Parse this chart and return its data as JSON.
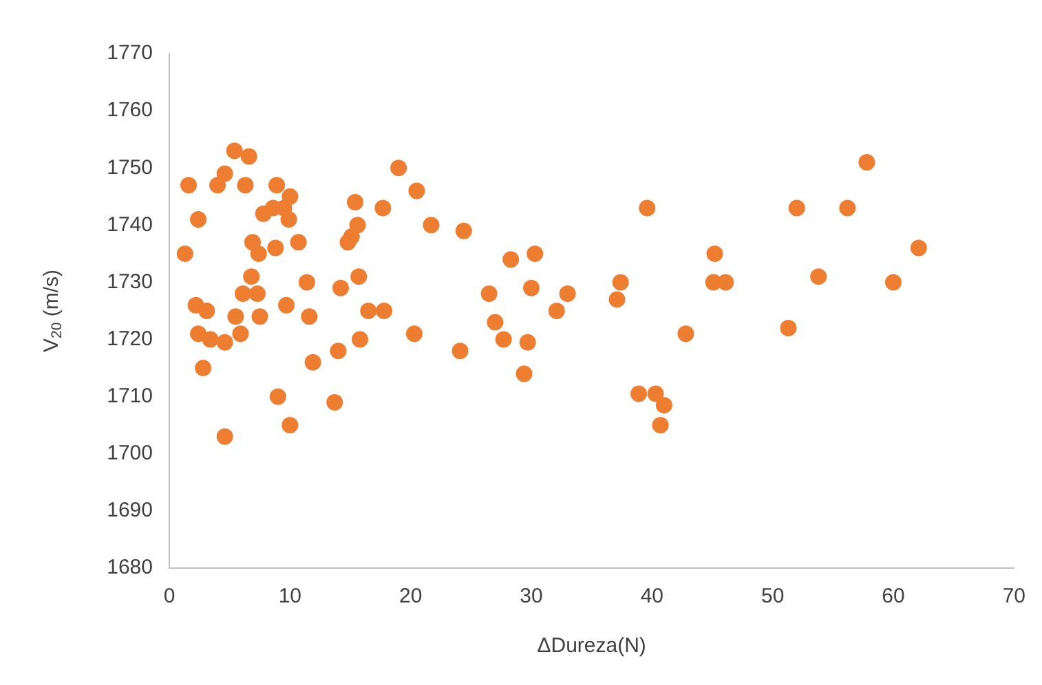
{
  "chart_data": {
    "type": "scatter",
    "xlabel": "ΔDureza(N)",
    "ylabel": "V$_{20}$ (m/s)",
    "xlim": [
      0,
      70
    ],
    "xticks": [
      0,
      10,
      20,
      30,
      40,
      50,
      60,
      70
    ],
    "ylim": [
      1680,
      1770
    ],
    "yticks": [
      1680,
      1690,
      1700,
      1710,
      1720,
      1730,
      1740,
      1750,
      1760,
      1770
    ],
    "grid": false,
    "legend": false,
    "marker": "circle",
    "series": [
      {
        "color": "#ed7d31",
        "x": [
          1.3,
          1.6,
          2.2,
          2.4,
          2.4,
          2.8,
          3.1,
          3.4,
          4.0,
          4.6,
          4.6,
          4.6,
          5.4,
          5.5,
          5.9,
          6.1,
          6.3,
          6.6,
          6.8,
          6.9,
          7.3,
          7.4,
          7.5,
          7.8,
          8.6,
          8.8,
          8.9,
          9.0,
          9.5,
          9.7,
          9.9,
          10.0,
          10.0,
          10.7,
          11.4,
          11.6,
          11.9,
          13.7,
          14.0,
          14.2,
          14.8,
          15.1,
          15.4,
          15.6,
          15.7,
          15.8,
          16.5,
          17.7,
          17.8,
          19.0,
          20.3,
          20.5,
          21.7,
          24.1,
          24.4,
          26.5,
          27.0,
          27.7,
          28.3,
          29.4,
          29.7,
          30.0,
          30.3,
          32.1,
          33.0,
          37.1,
          37.4,
          38.9,
          39.6,
          40.3,
          40.7,
          41.0,
          42.8,
          45.1,
          45.2,
          46.1,
          51.3,
          52.0,
          53.8,
          56.2,
          57.8,
          60.0,
          62.1
        ],
        "values": [
          1735,
          1747,
          1726,
          1741,
          1721,
          1715,
          1725,
          1720,
          1747,
          1749,
          1719.5,
          1703,
          1753,
          1724,
          1721,
          1728,
          1747,
          1752,
          1731,
          1737,
          1728,
          1735,
          1724,
          1742,
          1743,
          1736,
          1747,
          1710,
          1743,
          1726,
          1741,
          1745,
          1705,
          1737,
          1730,
          1724,
          1716,
          1709,
          1718,
          1729,
          1737,
          1738,
          1744,
          1740,
          1731,
          1720,
          1725,
          1743,
          1725,
          1750,
          1721,
          1746,
          1740,
          1718,
          1739,
          1728,
          1723,
          1720,
          1734,
          1714,
          1719.5,
          1729,
          1735,
          1725,
          1728,
          1727,
          1730,
          1710.5,
          1743,
          1710.5,
          1705,
          1708.5,
          1721,
          1730,
          1735,
          1730,
          1722,
          1743,
          1731,
          1743,
          1751,
          1730,
          1736
        ]
      }
    ]
  }
}
